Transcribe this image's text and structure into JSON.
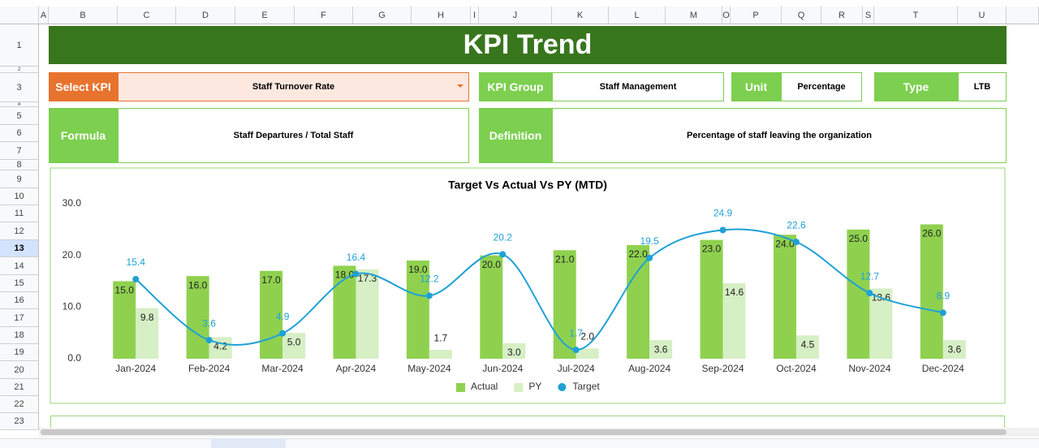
{
  "header": {
    "title": "KPI Trend"
  },
  "fields": {
    "select_kpi": {
      "label": "Select KPI",
      "value": "Staff Turnover Rate"
    },
    "kpi_group": {
      "label": "KPI Group",
      "value": "Staff Management"
    },
    "unit": {
      "label": "Unit",
      "value": "Percentage"
    },
    "type": {
      "label": "Type",
      "value": "LTB"
    },
    "formula": {
      "label": "Formula",
      "value": "Staff Departures / Total Staff"
    },
    "definition": {
      "label": "Definition",
      "value": "Percentage of staff leaving the organization"
    }
  },
  "sheet": {
    "columns": [
      "A",
      "B",
      "C",
      "D",
      "E",
      "F",
      "G",
      "H",
      "I",
      "J",
      "K",
      "L",
      "M",
      "O",
      "P",
      "Q",
      "R",
      "S",
      "T",
      "U"
    ],
    "rows": [
      1,
      2,
      3,
      4,
      5,
      6,
      7,
      8,
      9,
      10,
      11,
      12,
      13,
      14,
      15,
      16,
      17,
      18,
      19,
      20,
      21,
      22,
      23
    ]
  },
  "chart_data": {
    "type": "bar-line",
    "title": "Target Vs Actual Vs PY (MTD)",
    "categories": [
      "Jan-2024",
      "Feb-2024",
      "Mar-2024",
      "Apr-2024",
      "May-2024",
      "Jun-2024",
      "Jul-2024",
      "Aug-2024",
      "Sep-2024",
      "Oct-2024",
      "Nov-2024",
      "Dec-2024"
    ],
    "ylim": [
      0,
      30
    ],
    "yticks": [
      {
        "value": 0,
        "label": "0.0"
      },
      {
        "value": 10,
        "label": "10.0"
      },
      {
        "value": 20,
        "label": "20.0"
      },
      {
        "value": 30,
        "label": "30.0"
      }
    ],
    "grid": false,
    "legend": "bottom",
    "series": [
      {
        "name": "Actual",
        "kind": "bar",
        "color": "#8fd14f",
        "values": [
          15,
          16,
          17,
          18,
          19,
          20,
          21,
          22,
          23,
          24,
          25,
          26
        ],
        "value_labels": [
          "15.0",
          "16.0",
          "17.0",
          "18.0",
          "19.0",
          "20.0",
          "21.0",
          "22.0",
          "23.0",
          "24.0",
          "25.0",
          "26.0"
        ]
      },
      {
        "name": "PY",
        "kind": "bar",
        "color": "#d6efc5",
        "values": [
          9.8,
          4.2,
          5.0,
          17.3,
          1.7,
          3.0,
          2.0,
          3.6,
          14.6,
          4.5,
          13.6,
          3.6
        ],
        "value_labels": [
          "9.8",
          "4.2",
          "5.0",
          "17.3",
          "1.7",
          "3.0",
          "2.0",
          "3.6",
          "14.6",
          "4.5",
          "13.6",
          "3.6"
        ]
      },
      {
        "name": "Target",
        "kind": "line",
        "color": "#1fa0d6",
        "values": [
          15.4,
          3.6,
          4.9,
          16.4,
          12.2,
          20.2,
          1.7,
          19.5,
          24.9,
          22.6,
          12.7,
          8.9
        ]
      }
    ]
  }
}
